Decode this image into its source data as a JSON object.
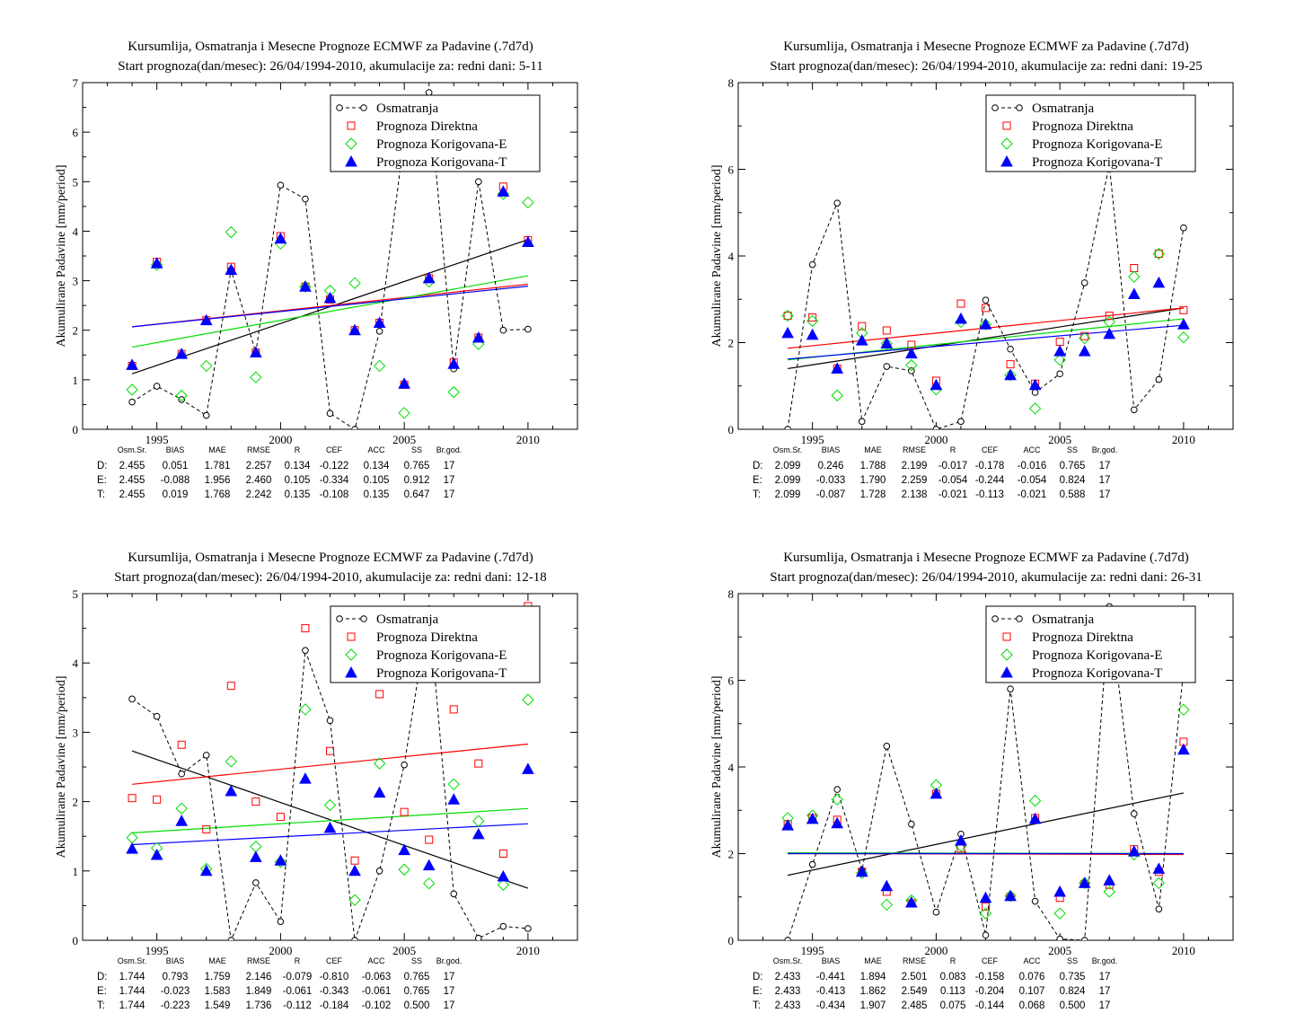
{
  "legend": {
    "obs": "Osmatranja",
    "d": "Prognoza Direktna",
    "e": "Prognoza Korigovana-E",
    "t": "Prognoza Korigovana-T"
  },
  "colors": {
    "obs": "#000000",
    "d": "#ff0000",
    "e": "#00dd00",
    "t": "#0000ff"
  },
  "stats_header": [
    "Osm.Sr.",
    "BIAS",
    "MAE",
    "RMSE",
    "R",
    "CEF",
    "ACC",
    "SS",
    "Br.god."
  ],
  "chart_data": [
    {
      "type": "scatter",
      "title": "Kursumlija, Osmatranja i Mesecne Prognoze ECMWF za Padavine (.7d7d)",
      "subtitle": "Start prognoza(dan/mesec): 26/04/1994-2010, akumulacije za: redni dani: 5-11",
      "ylabel": "Akumulirane Padavine [mm/period]",
      "xlim": [
        1992,
        2012
      ],
      "ylim": [
        0,
        7
      ],
      "xticks": [
        1995,
        2000,
        2005,
        2010
      ],
      "yticks": [
        0,
        1,
        2,
        3,
        4,
        5,
        6,
        7
      ],
      "x": [
        1994,
        1995,
        1996,
        1997,
        1998,
        1999,
        2000,
        2001,
        2002,
        2003,
        2004,
        2005,
        2006,
        2007,
        2008,
        2009,
        2010
      ],
      "series": [
        {
          "key": "obs",
          "name": "Osmatranja",
          "values": [
            0.55,
            0.87,
            0.6,
            0.28,
            3.22,
            1.55,
            4.93,
            4.65,
            0.32,
            0.0,
            1.98,
            5.9,
            6.8,
            1.22,
            5.0,
            2.0,
            2.02
          ]
        },
        {
          "key": "d",
          "name": "Prognoza Direktna",
          "values": [
            1.28,
            3.38,
            1.52,
            2.2,
            3.28,
            1.55,
            3.9,
            2.88,
            2.62,
            2.0,
            2.15,
            0.9,
            3.05,
            1.35,
            1.85,
            4.9,
            3.82
          ]
        },
        {
          "key": "e",
          "name": "Prognoza Korigovana-E",
          "values": [
            0.8,
            3.32,
            0.68,
            1.28,
            3.98,
            1.05,
            3.75,
            2.88,
            2.8,
            2.95,
            1.28,
            0.33,
            2.98,
            0.75,
            1.72,
            4.75,
            4.58
          ]
        },
        {
          "key": "t",
          "name": "Prognoza Korigovana-T",
          "values": [
            1.3,
            3.35,
            1.52,
            2.2,
            3.22,
            1.55,
            3.85,
            2.88,
            2.65,
            2.0,
            2.15,
            0.92,
            3.05,
            1.32,
            1.85,
            4.8,
            3.78
          ]
        }
      ],
      "trends": [
        {
          "key": "obs",
          "y_start": 1.12,
          "y_end": 3.83
        },
        {
          "key": "d",
          "y_start": 2.07,
          "y_end": 2.93
        },
        {
          "key": "e",
          "y_start": 1.66,
          "y_end": 3.1
        },
        {
          "key": "t",
          "y_start": 2.07,
          "y_end": 2.89
        }
      ],
      "stats": [
        {
          "label": "D:",
          "key": "d",
          "values": [
            "2.455",
            "0.051",
            "1.781",
            "2.257",
            "0.134",
            "-0.122",
            "0.134",
            "0.765",
            "17"
          ]
        },
        {
          "label": "E:",
          "key": "e",
          "values": [
            "2.455",
            "-0.088",
            "1.956",
            "2.460",
            "0.105",
            "-0.334",
            "0.105",
            "0.912",
            "17"
          ]
        },
        {
          "label": "T:",
          "key": "t",
          "values": [
            "2.455",
            "0.019",
            "1.768",
            "2.242",
            "0.135",
            "-0.108",
            "0.135",
            "0.647",
            "17"
          ]
        }
      ]
    },
    {
      "type": "scatter",
      "title": "Kursumlija, Osmatranja i Mesecne Prognoze ECMWF za Padavine (.7d7d)",
      "subtitle": "Start prognoza(dan/mesec): 26/04/1994-2010, akumulacije za: redni dani: 19-25",
      "ylabel": "Akumulirane Padavine [mm/period]",
      "xlim": [
        1992,
        2012
      ],
      "ylim": [
        0,
        8
      ],
      "xticks": [
        1995,
        2000,
        2005,
        2010
      ],
      "yticks": [
        0,
        2,
        4,
        6,
        8
      ],
      "x": [
        1994,
        1995,
        1996,
        1997,
        1998,
        1999,
        2000,
        2001,
        2002,
        2003,
        2004,
        2005,
        2006,
        2007,
        2008,
        2009,
        2010
      ],
      "series": [
        {
          "key": "obs",
          "name": "Osmatranja",
          "values": [
            0.0,
            3.8,
            5.22,
            0.18,
            1.45,
            1.35,
            0.0,
            0.18,
            2.98,
            1.85,
            0.85,
            1.28,
            3.38,
            6.1,
            0.45,
            1.15,
            4.65
          ]
        },
        {
          "key": "d",
          "name": "Prognoza Direktna",
          "values": [
            2.62,
            2.58,
            1.4,
            2.38,
            2.28,
            1.95,
            1.12,
            2.9,
            2.8,
            1.5,
            1.05,
            2.02,
            2.15,
            2.62,
            3.72,
            4.05,
            2.75
          ]
        },
        {
          "key": "e",
          "name": "Prognoza Korigovana-E",
          "values": [
            2.62,
            2.5,
            0.78,
            2.22,
            1.98,
            1.48,
            0.92,
            2.48,
            2.42,
            1.25,
            0.48,
            1.6,
            2.1,
            2.48,
            3.52,
            4.05,
            2.12
          ]
        },
        {
          "key": "t",
          "name": "Prognoza Korigovana-T",
          "values": [
            2.22,
            2.18,
            1.4,
            2.05,
            1.98,
            1.75,
            1.02,
            2.55,
            2.42,
            1.25,
            1.02,
            1.8,
            1.8,
            2.2,
            3.12,
            3.38,
            2.42
          ]
        }
      ],
      "trends": [
        {
          "key": "obs",
          "y_start": 1.4,
          "y_end": 2.8
        },
        {
          "key": "d",
          "y_start": 1.87,
          "y_end": 2.8
        },
        {
          "key": "e",
          "y_start": 1.6,
          "y_end": 2.55
        },
        {
          "key": "t",
          "y_start": 1.62,
          "y_end": 2.4
        }
      ],
      "stats": [
        {
          "label": "D:",
          "key": "d",
          "values": [
            "2.099",
            "0.246",
            "1.788",
            "2.199",
            "-0.017",
            "-0.178",
            "-0.016",
            "0.765",
            "17"
          ]
        },
        {
          "label": "E:",
          "key": "e",
          "values": [
            "2.099",
            "-0.033",
            "1.790",
            "2.259",
            "-0.054",
            "-0.244",
            "-0.054",
            "0.824",
            "17"
          ]
        },
        {
          "label": "T:",
          "key": "t",
          "values": [
            "2.099",
            "-0.087",
            "1.728",
            "2.138",
            "-0.021",
            "-0.113",
            "-0.021",
            "0.588",
            "17"
          ]
        }
      ]
    },
    {
      "type": "scatter",
      "title": "Kursumlija, Osmatranja i Mesecne Prognoze ECMWF za Padavine (.7d7d)",
      "subtitle": "Start prognoza(dan/mesec): 26/04/1994-2010, akumulacije za: redni dani: 12-18",
      "ylabel": "Akumulirane Padavine [mm/period]",
      "xlim": [
        1992,
        2012
      ],
      "ylim": [
        0,
        5
      ],
      "xticks": [
        1995,
        2000,
        2005,
        2010
      ],
      "yticks": [
        0,
        1,
        2,
        3,
        4,
        5
      ],
      "x": [
        1994,
        1995,
        1996,
        1997,
        1998,
        1999,
        2000,
        2001,
        2002,
        2003,
        2004,
        2005,
        2006,
        2007,
        2008,
        2009,
        2010
      ],
      "series": [
        {
          "key": "obs",
          "name": "Osmatranja",
          "values": [
            3.48,
            3.23,
            2.4,
            2.67,
            0.0,
            0.83,
            0.27,
            4.18,
            3.17,
            0.0,
            1.0,
            2.53,
            4.78,
            0.67,
            0.03,
            0.2,
            0.17
          ]
        },
        {
          "key": "d",
          "name": "Prognoza Direktna",
          "values": [
            2.05,
            2.03,
            2.82,
            1.6,
            3.67,
            2.0,
            1.78,
            4.5,
            2.73,
            1.15,
            3.55,
            1.85,
            1.45,
            3.33,
            2.55,
            1.25,
            4.82
          ]
        },
        {
          "key": "e",
          "name": "Prognoza Korigovana-E",
          "values": [
            1.48,
            1.33,
            1.9,
            1.03,
            2.58,
            1.35,
            1.13,
            3.33,
            1.95,
            0.58,
            2.55,
            1.02,
            0.82,
            2.25,
            1.72,
            0.8,
            3.47
          ]
        },
        {
          "key": "t",
          "name": "Prognoza Korigovana-T",
          "values": [
            1.32,
            1.23,
            1.72,
            1.0,
            2.15,
            1.2,
            1.15,
            2.33,
            1.62,
            1.0,
            2.13,
            1.3,
            1.08,
            2.03,
            1.53,
            0.92,
            2.47
          ]
        }
      ],
      "trends": [
        {
          "key": "obs",
          "y_start": 2.73,
          "y_end": 0.75
        },
        {
          "key": "d",
          "y_start": 2.25,
          "y_end": 2.83
        },
        {
          "key": "e",
          "y_start": 1.55,
          "y_end": 1.9
        },
        {
          "key": "t",
          "y_start": 1.38,
          "y_end": 1.68
        }
      ],
      "stats": [
        {
          "label": "D:",
          "key": "d",
          "values": [
            "1.744",
            "0.793",
            "1.759",
            "2.146",
            "-0.079",
            "-0.810",
            "-0.063",
            "0.765",
            "17"
          ]
        },
        {
          "label": "E:",
          "key": "e",
          "values": [
            "1.744",
            "-0.023",
            "1.583",
            "1.849",
            "-0.061",
            "-0.343",
            "-0.061",
            "0.765",
            "17"
          ]
        },
        {
          "label": "T:",
          "key": "t",
          "values": [
            "1.744",
            "-0.223",
            "1.549",
            "1.736",
            "-0.112",
            "-0.184",
            "-0.102",
            "0.500",
            "17"
          ]
        }
      ]
    },
    {
      "type": "scatter",
      "title": "Kursumlija, Osmatranja i Mesecne Prognoze ECMWF za Padavine (.7d7d)",
      "subtitle": "Start prognoza(dan/mesec): 26/04/1994-2010, akumulacije za: redni dani: 26-31",
      "ylabel": "Akumulirane Padavine [mm/period]",
      "xlim": [
        1992,
        2012
      ],
      "ylim": [
        0,
        8
      ],
      "xticks": [
        1995,
        2000,
        2005,
        2010
      ],
      "yticks": [
        0,
        2,
        4,
        6,
        8
      ],
      "x": [
        1994,
        1995,
        1996,
        1997,
        1998,
        1999,
        2000,
        2001,
        2002,
        2003,
        2004,
        2005,
        2006,
        2007,
        2008,
        2009,
        2010
      ],
      "series": [
        {
          "key": "obs",
          "name": "Osmatranja",
          "values": [
            0.0,
            1.75,
            3.48,
            1.62,
            4.48,
            2.68,
            0.65,
            2.45,
            0.12,
            5.8,
            0.9,
            0.03,
            0.0,
            7.7,
            2.92,
            0.72,
            6.22
          ]
        },
        {
          "key": "d",
          "name": "Prognoza Direktna",
          "values": [
            2.68,
            2.82,
            2.78,
            1.58,
            1.12,
            0.85,
            3.38,
            2.12,
            0.78,
            1.0,
            2.82,
            0.98,
            1.3,
            1.28,
            2.1,
            1.58,
            4.58
          ]
        },
        {
          "key": "e",
          "name": "Prognoza Korigovana-E",
          "values": [
            2.82,
            2.88,
            3.25,
            1.55,
            0.82,
            0.92,
            3.58,
            2.18,
            0.62,
            1.02,
            3.22,
            0.62,
            1.32,
            1.12,
            1.98,
            1.32,
            5.32
          ]
        },
        {
          "key": "t",
          "name": "Prognoza Korigovana-T",
          "values": [
            2.65,
            2.8,
            2.7,
            1.58,
            1.25,
            0.87,
            3.38,
            2.3,
            0.98,
            1.02,
            2.8,
            1.12,
            1.32,
            1.38,
            2.05,
            1.65,
            4.4
          ]
        }
      ],
      "trends": [
        {
          "key": "obs",
          "y_start": 1.5,
          "y_end": 3.4
        },
        {
          "key": "d",
          "y_start": 2.0,
          "y_end": 1.98
        },
        {
          "key": "e",
          "y_start": 2.02,
          "y_end": 2.0
        },
        {
          "key": "t",
          "y_start": 2.0,
          "y_end": 2.0
        }
      ],
      "stats": [
        {
          "label": "D:",
          "key": "d",
          "values": [
            "2.433",
            "-0.441",
            "1.894",
            "2.501",
            "0.083",
            "-0.158",
            "0.076",
            "0.735",
            "17"
          ]
        },
        {
          "label": "E:",
          "key": "e",
          "values": [
            "2.433",
            "-0.413",
            "1.862",
            "2.549",
            "0.113",
            "-0.204",
            "0.107",
            "0.824",
            "17"
          ]
        },
        {
          "label": "T:",
          "key": "t",
          "values": [
            "2.433",
            "-0.434",
            "1.907",
            "2.485",
            "0.075",
            "-0.144",
            "0.068",
            "0.500",
            "17"
          ]
        }
      ]
    }
  ]
}
